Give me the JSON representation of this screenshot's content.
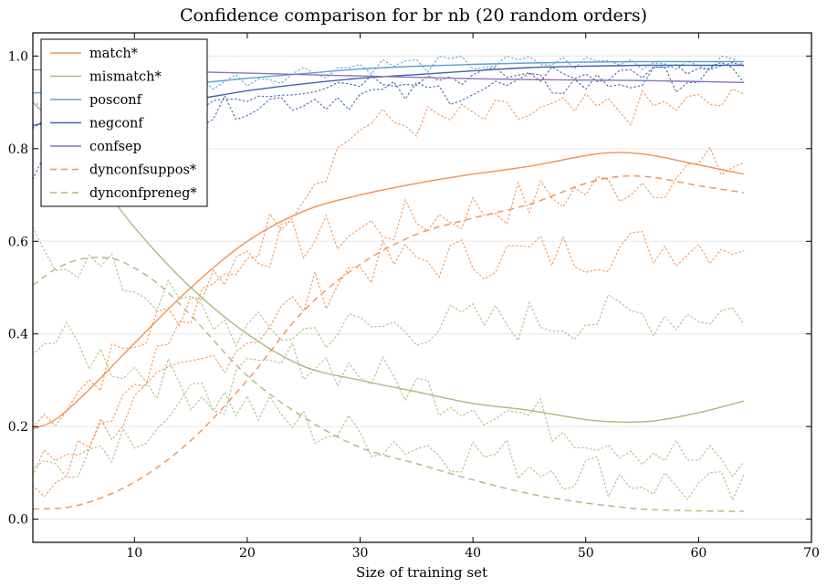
{
  "chart_data": {
    "type": "line",
    "title": "Confidence comparison for br nb (20 random orders)",
    "xlabel": "Size of training set",
    "ylabel": "",
    "xlim": [
      1,
      70
    ],
    "ylim": [
      -0.05,
      1.05
    ],
    "xticks": [
      10,
      20,
      30,
      40,
      50,
      60,
      70
    ],
    "yticks": [
      0.0,
      0.2,
      0.4,
      0.6,
      0.8,
      1.0
    ],
    "grid": "horizontal",
    "legend_position": "top-left",
    "series": [
      {
        "name": "match*",
        "color": "#f0924f",
        "dash": "solid",
        "x": [
          1,
          3,
          6,
          10,
          15,
          20,
          25,
          30,
          35,
          40,
          45,
          50,
          53,
          56,
          60,
          64
        ],
        "y": [
          0.195,
          0.215,
          0.28,
          0.38,
          0.5,
          0.6,
          0.665,
          0.7,
          0.725,
          0.745,
          0.762,
          0.785,
          0.792,
          0.785,
          0.765,
          0.745
        ]
      },
      {
        "name": "mismatch*",
        "color": "#a8bb7c",
        "dash": "solid",
        "x": [
          1,
          3,
          6,
          10,
          15,
          20,
          25,
          30,
          35,
          40,
          45,
          50,
          53,
          56,
          60,
          64
        ],
        "y": [
          0.9,
          0.85,
          0.76,
          0.63,
          0.5,
          0.4,
          0.33,
          0.3,
          0.275,
          0.25,
          0.235,
          0.215,
          0.21,
          0.212,
          0.23,
          0.255
        ]
      },
      {
        "name": "posconf",
        "color": "#5ba3d0",
        "dash": "solid",
        "x": [
          1,
          5,
          10,
          15,
          20,
          25,
          30,
          35,
          40,
          45,
          50,
          55,
          60,
          64
        ],
        "y": [
          0.92,
          0.925,
          0.93,
          0.94,
          0.952,
          0.962,
          0.972,
          0.978,
          0.982,
          0.985,
          0.987,
          0.988,
          0.988,
          0.988
        ]
      },
      {
        "name": "negconf",
        "color": "#3f63ae",
        "dash": "solid",
        "x": [
          1,
          3,
          6,
          10,
          15,
          20,
          25,
          30,
          35,
          40,
          45,
          50,
          55,
          60,
          64
        ],
        "y": [
          0.85,
          0.86,
          0.875,
          0.89,
          0.905,
          0.925,
          0.94,
          0.952,
          0.96,
          0.968,
          0.975,
          0.978,
          0.98,
          0.98,
          0.98
        ]
      },
      {
        "name": "confsep",
        "color": "#8a74b8",
        "dash": "solid",
        "x": [
          1,
          5,
          10,
          15,
          20,
          25,
          30,
          35,
          40,
          45,
          50,
          55,
          60,
          64
        ],
        "y": [
          0.97,
          0.97,
          0.968,
          0.966,
          0.963,
          0.96,
          0.957,
          0.954,
          0.951,
          0.949,
          0.948,
          0.947,
          0.945,
          0.943
        ]
      },
      {
        "name": "dynconfsuppos*",
        "color": "#f0924f",
        "dash": "dashed",
        "x": [
          1,
          5,
          10,
          15,
          20,
          25,
          30,
          35,
          40,
          45,
          50,
          53,
          56,
          60,
          64
        ],
        "y": [
          0.022,
          0.03,
          0.08,
          0.17,
          0.3,
          0.45,
          0.55,
          0.615,
          0.65,
          0.68,
          0.725,
          0.74,
          0.738,
          0.72,
          0.705
        ]
      },
      {
        "name": "dynconfpreneg*",
        "color": "#a8bb7c",
        "dash": "dashed",
        "x": [
          1,
          3,
          5,
          7,
          9,
          12,
          15,
          20,
          25,
          30,
          35,
          40,
          45,
          50,
          55,
          60,
          64
        ],
        "y": [
          0.505,
          0.54,
          0.56,
          0.565,
          0.555,
          0.51,
          0.44,
          0.31,
          0.22,
          0.155,
          0.12,
          0.085,
          0.055,
          0.035,
          0.022,
          0.018,
          0.017
        ]
      }
    ],
    "noise_series": [
      {
        "color": "#f0924f",
        "center": [
          1,
          0.2,
          20,
          0.58,
          64,
          0.77
        ],
        "amp": 0.05
      },
      {
        "color": "#f0924f",
        "center": [
          1,
          0.1,
          30,
          0.55,
          64,
          0.6
        ],
        "amp": 0.05
      },
      {
        "color": "#f0924f",
        "center": [
          1,
          0.05,
          30,
          0.85,
          64,
          0.9
        ],
        "amp": 0.04
      },
      {
        "color": "#a8bb7c",
        "center": [
          1,
          0.4,
          25,
          0.2,
          64,
          0.05
        ],
        "amp": 0.05
      },
      {
        "color": "#a8bb7c",
        "center": [
          1,
          0.6,
          20,
          0.4,
          64,
          0.45
        ],
        "amp": 0.05
      },
      {
        "color": "#a8bb7c",
        "center": [
          1,
          0.1,
          25,
          0.35,
          64,
          0.1
        ],
        "amp": 0.05
      },
      {
        "color": "#5ba3d0",
        "center": [
          1,
          0.9,
          30,
          0.98,
          64,
          0.99
        ],
        "amp": 0.02
      },
      {
        "color": "#3f63ae",
        "center": [
          1,
          0.75,
          20,
          0.9,
          64,
          0.96
        ],
        "amp": 0.03
      },
      {
        "color": "#3f63ae",
        "center": [
          1,
          0.85,
          30,
          0.95,
          64,
          0.97
        ],
        "amp": 0.02
      }
    ]
  }
}
